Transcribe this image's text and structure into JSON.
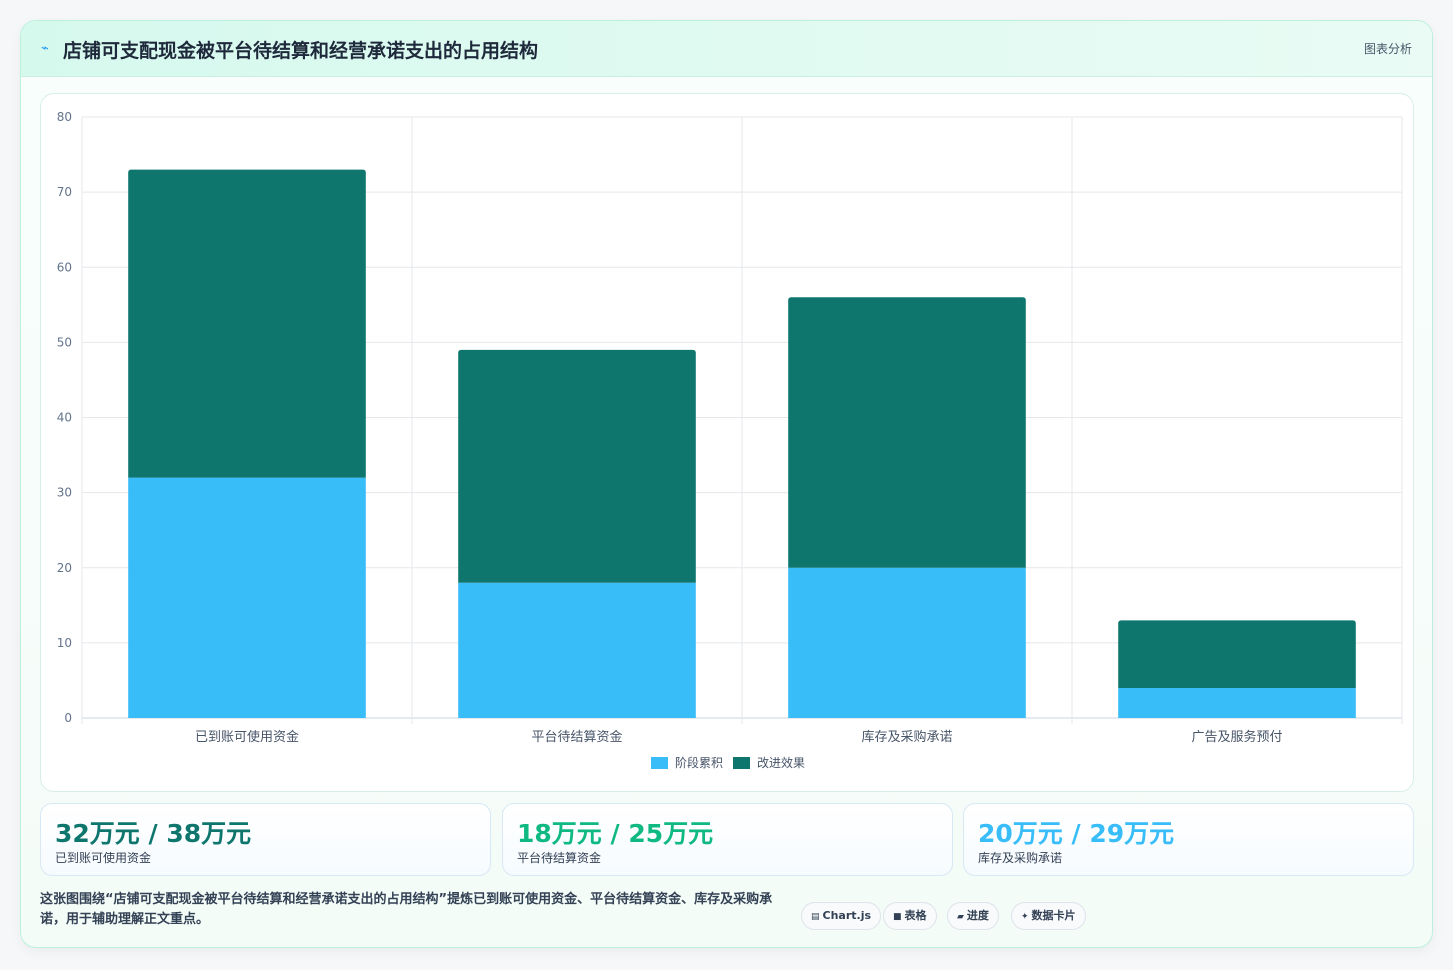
{
  "header": {
    "title": "店铺可支配现金被平台待结算和经营承诺支出的占用结构",
    "action_label": "图表分析",
    "title_icon": "trend-icon"
  },
  "chart_data": {
    "type": "bar",
    "stacked": true,
    "title": "",
    "categories": [
      "已到账可使用资金",
      "平台待结算资金",
      "库存及采购承诺",
      "广告及服务预付"
    ],
    "series": [
      {
        "name": "阶段累积",
        "color": "#38bdf8",
        "values": [
          32,
          18,
          20,
          4
        ]
      },
      {
        "name": "改进效果",
        "color": "#0f766e",
        "values": [
          41,
          31,
          36,
          9
        ]
      }
    ],
    "ylim": [
      0,
      80
    ],
    "yticks": [
      "0",
      "10",
      "20",
      "30",
      "40",
      "50",
      "60",
      "70",
      "80"
    ],
    "grid": true,
    "legend_position": "bottom"
  },
  "kpis": [
    {
      "value": "32万元 / 38万元",
      "label": "已到账可使用资金",
      "color": "#0f766e"
    },
    {
      "value": "18万元 / 25万元",
      "label": "平台待结算资金",
      "color": "#10b981"
    },
    {
      "value": "20万元 / 29万元",
      "label": "库存及采购承诺",
      "color": "#38bdf8"
    }
  ],
  "footer": {
    "description": "这张图围绕“店铺可支配现金被平台待结算和经营承诺支出的占用结构”提炼已到账可使用资金、平台待结算资金、库存及采购承诺，用于辅助理解正文重点。",
    "chips": [
      {
        "icon": "▤",
        "label": "Chart.js"
      },
      {
        "icon": "■",
        "label": "表格"
      },
      {
        "icon": "▰",
        "label": "进度"
      },
      {
        "icon": "✦",
        "label": "数据卡片"
      }
    ]
  }
}
